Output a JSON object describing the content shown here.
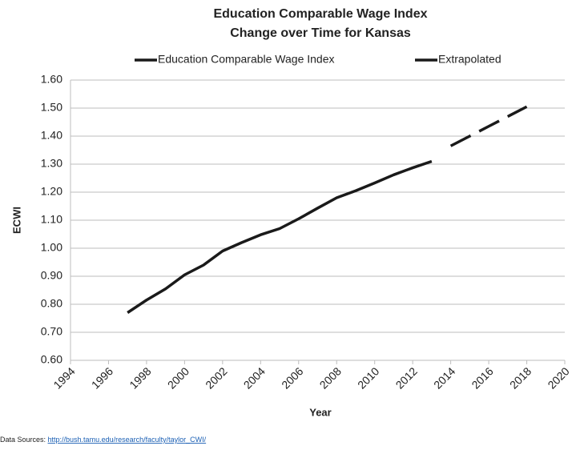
{
  "chart_data": {
    "type": "line",
    "title": "Education Comparable Wage Index",
    "subtitle": "Change over Time for Kansas",
    "x_label": "Year",
    "y_label": "ECWI",
    "series": [
      {
        "name": "Education Comparable Wage Index",
        "color": "#1a1a1a",
        "dashed": false,
        "x": [
          1997,
          1998,
          1999,
          2000,
          2001,
          2002,
          2003,
          2004,
          2005,
          2006,
          2007,
          2008,
          2009,
          2010,
          2011,
          2012,
          2013
        ],
        "values": [
          0.77,
          0.815,
          0.855,
          0.905,
          0.94,
          0.99,
          1.02,
          1.048,
          1.07,
          1.105,
          1.143,
          1.18,
          1.205,
          1.233,
          1.262,
          1.287,
          1.31
        ]
      },
      {
        "name": "Extrapolated",
        "color": "#1a1a1a",
        "dashed": true,
        "x": [
          2014,
          2015,
          2016,
          2017,
          2018
        ],
        "values": [
          1.365,
          1.4,
          1.435,
          1.47,
          1.505
        ]
      }
    ],
    "xlim": [
      1994,
      2020
    ],
    "xticks": [
      1994,
      1996,
      1998,
      2000,
      2002,
      2004,
      2006,
      2008,
      2010,
      2012,
      2014,
      2016,
      2018,
      2020
    ],
    "ylim": [
      0.6,
      1.6
    ],
    "yticks": [
      {
        "value": 0.6,
        "label": "0.60"
      },
      {
        "value": 0.7,
        "label": "0.70"
      },
      {
        "value": 0.8,
        "label": "0.80"
      },
      {
        "value": 0.9,
        "label": "0.90"
      },
      {
        "value": 1.0,
        "label": "1.00"
      },
      {
        "value": 1.1,
        "label": "1.10"
      },
      {
        "value": 1.2,
        "label": "1.20"
      },
      {
        "value": 1.3,
        "label": "1.30"
      },
      {
        "value": 1.4,
        "label": "1.40"
      },
      {
        "value": 1.5,
        "label": "1.50"
      },
      {
        "value": 1.6,
        "label": "1.60"
      }
    ],
    "grid": true,
    "legend": "top",
    "source_label": "Data Sources: ",
    "source_url": "http://bush.tamu.edu/research/faculty/taylor_CWI/"
  }
}
